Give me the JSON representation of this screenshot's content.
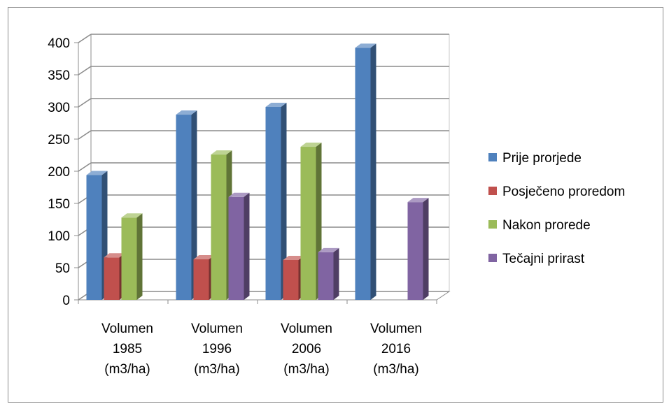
{
  "chart_data": {
    "type": "bar",
    "title": "",
    "xlabel": "",
    "ylabel": "",
    "ylim": [
      0,
      400
    ],
    "yticks": [
      0,
      50,
      100,
      150,
      200,
      250,
      300,
      350,
      400
    ],
    "grid": true,
    "legend_position": "right",
    "categories": [
      [
        "Volumen",
        "1985",
        "(m3/ha)"
      ],
      [
        "Volumen",
        "1996",
        "(m3/ha)"
      ],
      [
        "Volumen",
        "2006",
        "(m3/ha)"
      ],
      [
        "Volumen",
        "2016",
        "(m3/ha)"
      ]
    ],
    "series": [
      {
        "name": "Prije prorjede",
        "color": "#4f81bd",
        "values": [
          194,
          288,
          300,
          392
        ]
      },
      {
        "name": "Posječeno proredom",
        "color": "#c0504d",
        "values": [
          66,
          63,
          62,
          null
        ]
      },
      {
        "name": "Nakon prorede",
        "color": "#9bbb59",
        "values": [
          128,
          226,
          238,
          null
        ]
      },
      {
        "name": "Tečajni prirast",
        "color": "#8064a2",
        "values": [
          null,
          160,
          74,
          152
        ]
      }
    ]
  }
}
